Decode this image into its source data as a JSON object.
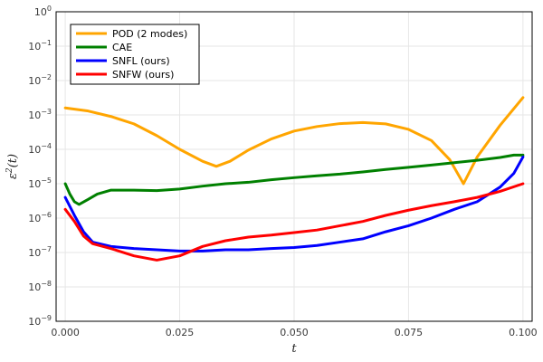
{
  "chart_data": {
    "type": "line",
    "xlabel": "t",
    "ylabel_main": "ε",
    "ylabel_sup": "2",
    "ylabel_arg": "(t)",
    "xlim": [
      -0.002,
      0.102
    ],
    "ylim": [
      1e-09,
      1
    ],
    "yscale": "log",
    "grid": true,
    "legend_position": "top-left",
    "x_ticks": [
      {
        "value": 0.0,
        "label": "0.000"
      },
      {
        "value": 0.025,
        "label": "0.025"
      },
      {
        "value": 0.05,
        "label": "0.050"
      },
      {
        "value": 0.075,
        "label": "0.075"
      },
      {
        "value": 0.1,
        "label": "0.100"
      }
    ],
    "y_ticks": [
      {
        "value": 1e-09,
        "base": "10",
        "exp": "−9"
      },
      {
        "value": 1e-08,
        "base": "10",
        "exp": "−8"
      },
      {
        "value": 1e-07,
        "base": "10",
        "exp": "−7"
      },
      {
        "value": 1e-06,
        "base": "10",
        "exp": "−6"
      },
      {
        "value": 1e-05,
        "base": "10",
        "exp": "−5"
      },
      {
        "value": 0.0001,
        "base": "10",
        "exp": "−4"
      },
      {
        "value": 0.001,
        "base": "10",
        "exp": "−3"
      },
      {
        "value": 0.01,
        "base": "10",
        "exp": "−2"
      },
      {
        "value": 0.1,
        "base": "10",
        "exp": "−1"
      },
      {
        "value": 1,
        "base": "10",
        "exp": "0"
      }
    ],
    "series": [
      {
        "name": "POD (2 modes)",
        "color": "#FFA500",
        "x": [
          0.0,
          0.005,
          0.01,
          0.015,
          0.02,
          0.025,
          0.03,
          0.033,
          0.036,
          0.04,
          0.045,
          0.05,
          0.055,
          0.06,
          0.065,
          0.07,
          0.075,
          0.08,
          0.084,
          0.087,
          0.09,
          0.095,
          0.1
        ],
        "y": [
          0.0016,
          0.0013,
          0.0009,
          0.00055,
          0.00025,
          0.0001,
          4.5e-05,
          3.2e-05,
          4.5e-05,
          9.5e-05,
          0.0002,
          0.00034,
          0.00046,
          0.00056,
          0.0006,
          0.00055,
          0.00038,
          0.00018,
          5e-05,
          1e-05,
          6e-05,
          0.0005,
          0.0032
        ]
      },
      {
        "name": "CAE",
        "color": "#008000",
        "x": [
          0.0,
          0.001,
          0.002,
          0.003,
          0.005,
          0.007,
          0.01,
          0.015,
          0.02,
          0.025,
          0.03,
          0.035,
          0.04,
          0.045,
          0.05,
          0.055,
          0.06,
          0.065,
          0.07,
          0.075,
          0.08,
          0.085,
          0.09,
          0.095,
          0.098,
          0.1
        ],
        "y": [
          1e-05,
          5e-06,
          3e-06,
          2.5e-06,
          3.5e-06,
          5e-06,
          6.5e-06,
          6.5e-06,
          6.3e-06,
          7e-06,
          8.5e-06,
          1e-05,
          1.1e-05,
          1.3e-05,
          1.5e-05,
          1.7e-05,
          1.9e-05,
          2.2e-05,
          2.6e-05,
          3e-05,
          3.5e-05,
          4.1e-05,
          4.8e-05,
          5.8e-05,
          6.8e-05,
          6.8e-05
        ]
      },
      {
        "name": "SNFL (ours)",
        "color": "#0000FF",
        "x": [
          0.0,
          0.002,
          0.004,
          0.006,
          0.01,
          0.015,
          0.02,
          0.025,
          0.03,
          0.035,
          0.04,
          0.045,
          0.05,
          0.055,
          0.06,
          0.065,
          0.07,
          0.075,
          0.08,
          0.085,
          0.09,
          0.095,
          0.098,
          0.1
        ],
        "y": [
          4e-06,
          1.2e-06,
          4e-07,
          2e-07,
          1.5e-07,
          1.3e-07,
          1.2e-07,
          1.1e-07,
          1.1e-07,
          1.2e-07,
          1.2e-07,
          1.3e-07,
          1.4e-07,
          1.6e-07,
          2e-07,
          2.5e-07,
          4e-07,
          6e-07,
          1e-06,
          1.8e-06,
          3e-06,
          8e-06,
          2e-05,
          6e-05
        ]
      },
      {
        "name": "SNFW (ours)",
        "color": "#FF0000",
        "x": [
          0.0,
          0.002,
          0.004,
          0.006,
          0.01,
          0.015,
          0.02,
          0.025,
          0.03,
          0.035,
          0.04,
          0.045,
          0.05,
          0.055,
          0.06,
          0.065,
          0.07,
          0.075,
          0.08,
          0.085,
          0.09,
          0.095,
          0.1
        ],
        "y": [
          1.8e-06,
          8e-07,
          3e-07,
          1.8e-07,
          1.3e-07,
          8e-08,
          6e-08,
          8e-08,
          1.5e-07,
          2.2e-07,
          2.8e-07,
          3.2e-07,
          3.8e-07,
          4.5e-07,
          6e-07,
          8e-07,
          1.2e-06,
          1.7e-06,
          2.3e-06,
          3e-06,
          4e-06,
          6e-06,
          1e-05
        ]
      }
    ]
  }
}
